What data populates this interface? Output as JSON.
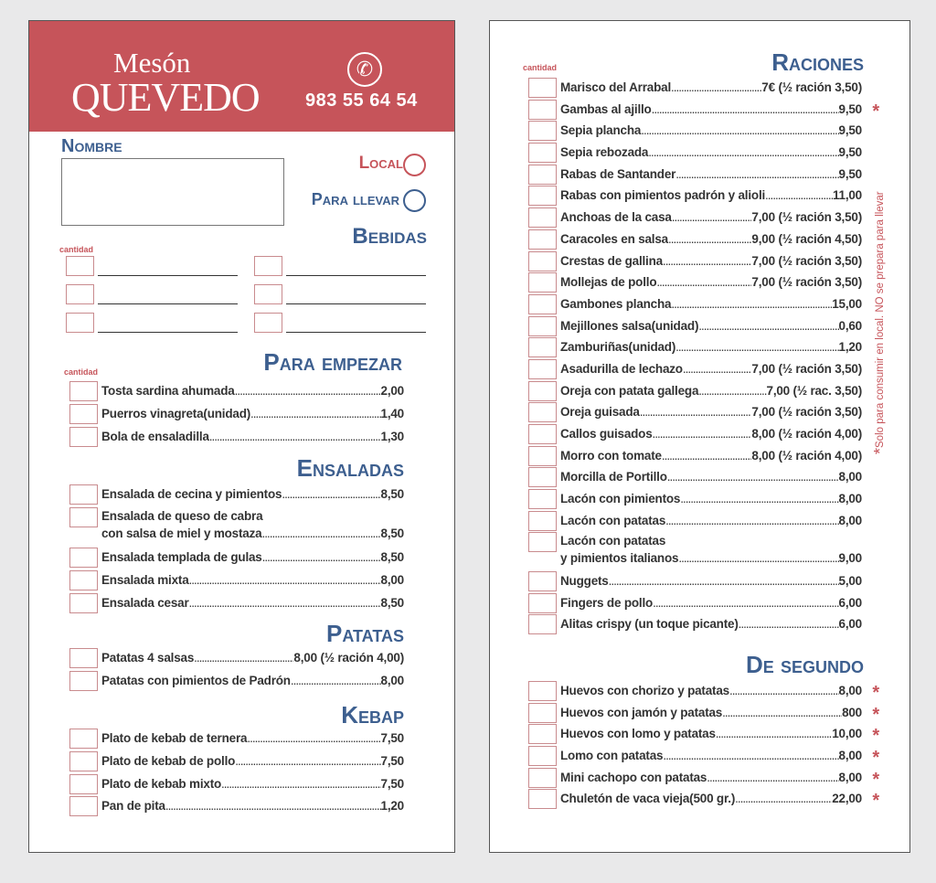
{
  "header": {
    "name_line1": "Mesón",
    "name_line2": "QUEVEDO",
    "phone_icon": "phone-icon",
    "phone": "983 55 64 54"
  },
  "form": {
    "nombre_label": "Nombre",
    "local_label": "Local",
    "llevar_label": "Para llevar"
  },
  "bebidas": {
    "title": "Bebidas",
    "cantidad": "cantidad"
  },
  "colors": {
    "red": "#c6545a",
    "blue": "#3d5f8f"
  },
  "sections": {
    "empezar": {
      "title": "Para empezar",
      "cantidad": "cantidad",
      "items": [
        {
          "name": "Tosta sardina ahumada",
          "price": "2,00"
        },
        {
          "name": "Puerros vinagreta(unidad)",
          "price": "1,40"
        },
        {
          "name": "Bola de ensaladilla",
          "price": "1,30"
        }
      ]
    },
    "ensaladas": {
      "title": "Ensaladas",
      "items": [
        {
          "name": "Ensalada de cecina y pimientos",
          "price": "8,50"
        },
        {
          "name": "Ensalada de queso de cabra",
          "name2": "con salsa de miel y mostaza",
          "price": "8,50"
        },
        {
          "name": "Ensalada templada de gulas",
          "price": "8,50"
        },
        {
          "name": "Ensalada mixta",
          "price": "8,00"
        },
        {
          "name": "Ensalada cesar",
          "price": "8,50"
        }
      ]
    },
    "patatas": {
      "title": "Patatas",
      "items": [
        {
          "name": "Patatas 4 salsas",
          "price": "8,00 (½ ración 4,00)"
        },
        {
          "name": "Patatas con pimientos de Padrón",
          "price": "8,00"
        }
      ]
    },
    "kebap": {
      "title": "Kebap",
      "items": [
        {
          "name": "Plato de kebab de ternera",
          "price": "7,50"
        },
        {
          "name": "Plato de kebab de pollo",
          "price": "7,50"
        },
        {
          "name": "Plato de kebab mixto",
          "price": "7,50"
        },
        {
          "name": "Pan de pita",
          "price": "1,20"
        }
      ]
    },
    "raciones": {
      "title": "Raciones",
      "cantidad": "cantidad",
      "items": [
        {
          "name": "Marisco del Arrabal",
          "price": "7€ (½ ración 3,50)"
        },
        {
          "name": "Gambas al ajillo",
          "price": "9,50",
          "star": "*"
        },
        {
          "name": "Sepia plancha",
          "price": "9,50"
        },
        {
          "name": "Sepia rebozada",
          "price": "9,50"
        },
        {
          "name": "Rabas de Santander",
          "price": "9,50"
        },
        {
          "name": "Rabas con pimientos padrón y alioli",
          "price": "11,00"
        },
        {
          "name": "Anchoas de la casa",
          "price": "7,00 (½ ración 3,50)"
        },
        {
          "name": "Caracoles en salsa",
          "price": "9,00 (½ ración 4,50)"
        },
        {
          "name": "Crestas de gallina",
          "price": "7,00 (½ ración 3,50)"
        },
        {
          "name": "Mollejas de pollo",
          "price": "7,00 (½ ración 3,50)"
        },
        {
          "name": "Gambones plancha",
          "price": "15,00"
        },
        {
          "name": "Mejillones salsa(unidad)",
          "price": "0,60"
        },
        {
          "name": "Zamburiñas(unidad)",
          "price": "1,20"
        },
        {
          "name": "Asadurilla de lechazo",
          "price": "7,00 (½ ración 3,50)"
        },
        {
          "name": "Oreja con patata gallega",
          "price": "7,00 (½ rac. 3,50)"
        },
        {
          "name": "Oreja guisada",
          "price": "7,00 (½ ración 3,50)"
        },
        {
          "name": "Callos guisados",
          "price": "8,00 (½ ración 4,00)"
        },
        {
          "name": "Morro con tomate",
          "price": "8,00 (½ ración 4,00)"
        },
        {
          "name": "Morcilla de Portillo",
          "price": "8,00"
        },
        {
          "name": "Lacón con pimientos",
          "price": "8,00"
        },
        {
          "name": "Lacón con patatas",
          "price": "8,00"
        },
        {
          "name": "Lacón con patatas",
          "name2": "y pimientos italianos",
          "price": "9,00"
        },
        {
          "name": "Nuggets",
          "price": "5,00"
        },
        {
          "name": "Fingers  de  pollo",
          "price": "6,00"
        },
        {
          "name": "Alitas crispy (un toque picante)",
          "price": "6,00"
        }
      ]
    },
    "segundo": {
      "title": "De segundo",
      "items": [
        {
          "name": "Huevos con chorizo y patatas",
          "price": "8,00",
          "star": "*"
        },
        {
          "name": "Huevos con jamón y patatas",
          "price": "800",
          "star": "*"
        },
        {
          "name": "Huevos con lomo y patatas",
          "price": "10,00",
          "star": "*"
        },
        {
          "name": "Lomo con patatas",
          "price": "8,00",
          "star": "*"
        },
        {
          "name": "Mini cachopo con patatas",
          "price": "8,00",
          "star": "*"
        },
        {
          "name": "Chuletón de vaca vieja(500 gr.)",
          "price": "22,00",
          "star": "*"
        }
      ]
    }
  },
  "note": {
    "star": "*",
    "text": "Solo para consumir en local. NO se prepara para llevar"
  }
}
